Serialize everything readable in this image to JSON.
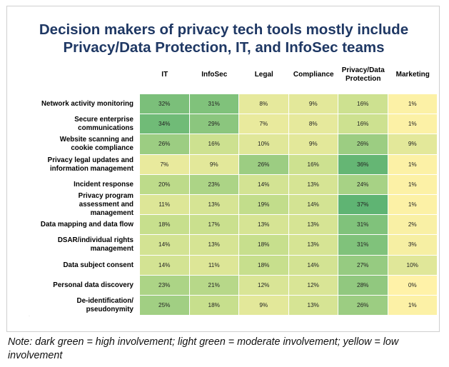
{
  "chart_data": {
    "type": "heatmap",
    "title_lines": [
      "Decision makers of privacy tech tools mostly include",
      "Privacy/Data Protection, IT, and InfoSec teams"
    ],
    "columns": [
      [
        "IT"
      ],
      [
        "InfoSec"
      ],
      [
        "Legal"
      ],
      [
        "Compliance"
      ],
      [
        "Privacy/Data",
        "Protection"
      ],
      [
        "Marketing"
      ]
    ],
    "rows": [
      [
        "Network activity monitoring"
      ],
      [
        "Secure enterprise",
        "communications"
      ],
      [
        "Website scanning and",
        "cookie compliance"
      ],
      [
        "Privacy legal updates and",
        "information management"
      ],
      [
        "Incident response"
      ],
      [
        "Privacy program",
        "assessment and",
        "management"
      ],
      [
        "Data mapping and data flow"
      ],
      [
        "DSAR/individual rights",
        "management"
      ],
      [
        "Data subject consent"
      ],
      [
        "Personal data discovery"
      ],
      [
        "De-identification/",
        "pseudonymity"
      ]
    ],
    "values": [
      [
        32,
        31,
        8,
        9,
        16,
        1
      ],
      [
        34,
        29,
        7,
        8,
        16,
        1
      ],
      [
        26,
        16,
        10,
        9,
        26,
        9
      ],
      [
        7,
        9,
        26,
        16,
        36,
        1
      ],
      [
        20,
        23,
        14,
        13,
        24,
        1
      ],
      [
        11,
        13,
        19,
        14,
        37,
        1
      ],
      [
        18,
        17,
        13,
        13,
        31,
        2
      ],
      [
        14,
        13,
        18,
        13,
        31,
        3
      ],
      [
        14,
        11,
        18,
        14,
        27,
        10
      ],
      [
        23,
        21,
        12,
        12,
        28,
        0
      ],
      [
        25,
        18,
        9,
        13,
        26,
        1
      ]
    ],
    "value_suffix": "%",
    "colors": {
      "low": "#fff2a8",
      "mid": "#c5de8c",
      "high": "#5fb473"
    }
  },
  "note": "Note: dark green = high involvement; light green = moderate involvement; yellow = low involvement"
}
